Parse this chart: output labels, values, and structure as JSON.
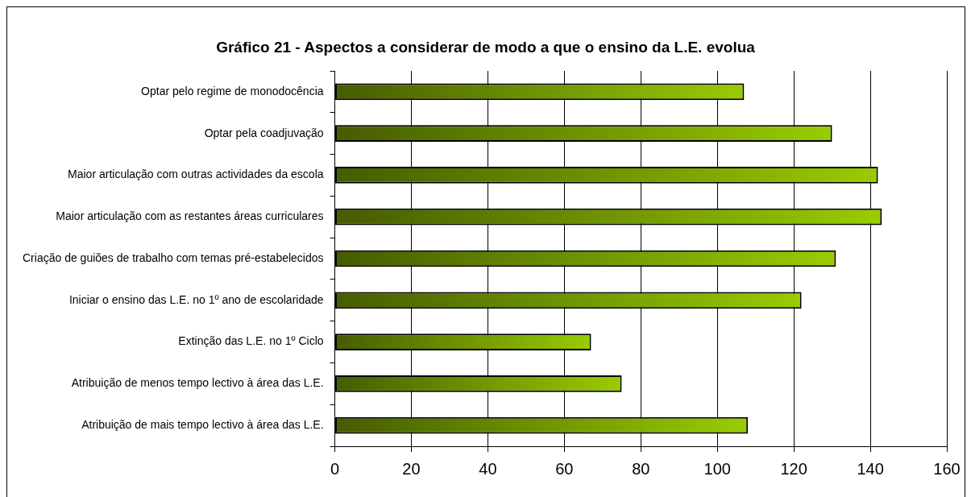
{
  "chart_data": {
    "type": "bar",
    "orientation": "horizontal",
    "title": "Gráfico 21 - Aspectos a considerar de modo a que o ensino da L.E. evolua",
    "categories": [
      "Optar pelo regime de monodocência",
      "Optar pela coadjuvação",
      "Maior articulação com outras actividades da escola",
      "Maior articulação com as restantes áreas curriculares",
      "Criação de guiões de trabalho com temas pré-estabelecidos",
      "Iniciar o ensino das L.E. no 1º ano de escolaridade",
      "Extinção das L.E. no 1º Ciclo",
      "Atribuição de menos tempo lectivo à área das L.E.",
      "Atribuição de mais tempo lectivo à área das L.E."
    ],
    "values": [
      107,
      130,
      142,
      143,
      131,
      122,
      67,
      75,
      108
    ],
    "color": "#99cc00",
    "xlim": [
      0,
      160
    ],
    "xticks": [
      0,
      20,
      40,
      60,
      80,
      100,
      120,
      140,
      160
    ],
    "grid": "x",
    "legend": false
  }
}
